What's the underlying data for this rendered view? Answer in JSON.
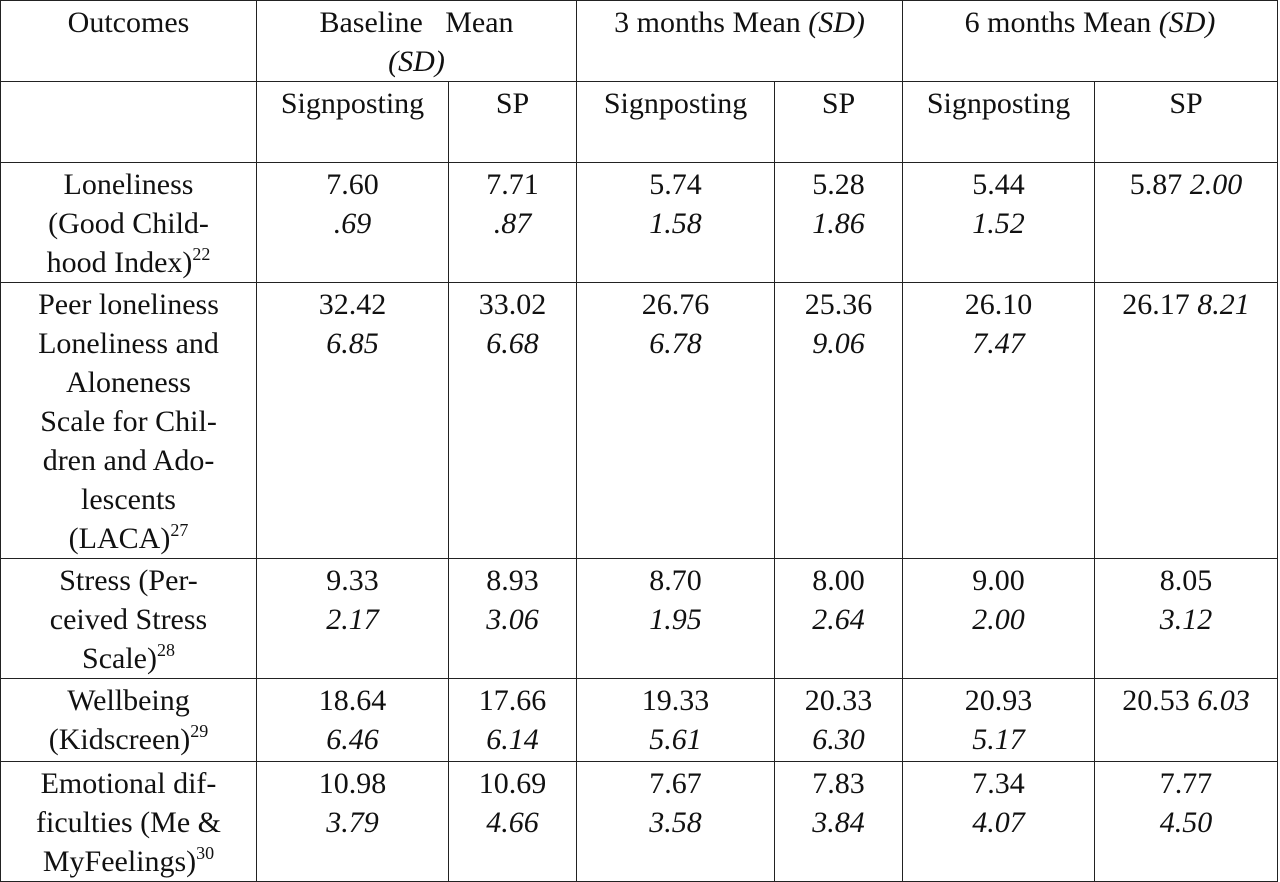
{
  "header": {
    "outcomes": "Outcomes",
    "baseline": "Baseline   Mean",
    "baseline_sd": "(SD)",
    "m3": "3 months Mean ",
    "m3_sd": "(SD)",
    "m6": "6 months Mean ",
    "m6_sd": "(SD)"
  },
  "subheader": {
    "c1": "Signposting",
    "c2": "SP",
    "c3": "Signposting",
    "c4": "SP",
    "c5": "Signposting",
    "c6": "SP"
  },
  "rows": [
    {
      "label_lines": [
        "Loneliness",
        "(Good Child-",
        "hood Index)"
      ],
      "ref": "22",
      "cells": [
        {
          "mean": "7.60",
          "sd": ".69"
        },
        {
          "mean": "7.71",
          "sd": ".87"
        },
        {
          "mean": "5.74",
          "sd": "1.58"
        },
        {
          "mean": "5.28",
          "sd": "1.86"
        },
        {
          "mean": "5.44",
          "sd": "1.52"
        },
        {
          "mean": "5.87",
          "sd": "2.00"
        }
      ]
    },
    {
      "label_lines": [
        "Peer loneliness",
        "Loneliness and",
        "Aloneness",
        "Scale for Chil-",
        "dren and Ado-",
        "lescents",
        "(LACA)"
      ],
      "ref": "27",
      "cells": [
        {
          "mean": "32.42",
          "sd": "6.85"
        },
        {
          "mean": "33.02",
          "sd": "6.68"
        },
        {
          "mean": "26.76",
          "sd": "6.78"
        },
        {
          "mean": "25.36",
          "sd": "9.06"
        },
        {
          "mean": "26.10",
          "sd": "7.47"
        },
        {
          "mean": "26.17",
          "sd": "8.21"
        }
      ]
    },
    {
      "label_lines": [
        "Stress (Per-",
        "ceived Stress",
        "Scale)"
      ],
      "ref": "28",
      "cells": [
        {
          "mean": "9.33",
          "sd": "2.17"
        },
        {
          "mean": "8.93",
          "sd": "3.06"
        },
        {
          "mean": "8.70",
          "sd": "1.95"
        },
        {
          "mean": "8.00",
          "sd": "2.64"
        },
        {
          "mean": "9.00",
          "sd": "2.00"
        },
        {
          "mean": "8.05",
          "sd": "3.12"
        }
      ]
    },
    {
      "label_lines": [
        "Wellbeing",
        "(Kidscreen)"
      ],
      "ref": "29",
      "cells": [
        {
          "mean": "18.64",
          "sd": "6.46"
        },
        {
          "mean": "17.66",
          "sd": "6.14"
        },
        {
          "mean": "19.33",
          "sd": "5.61"
        },
        {
          "mean": "20.33",
          "sd": "6.30"
        },
        {
          "mean": "20.93",
          "sd": "5.17"
        },
        {
          "mean": "20.53",
          "sd": "6.03"
        }
      ]
    },
    {
      "label_lines": [
        "Emotional dif-",
        "ficulties (Me &",
        "MyFeelings)"
      ],
      "ref": "30",
      "cells": [
        {
          "mean": "10.98",
          "sd": "3.79"
        },
        {
          "mean": "10.69",
          "sd": "4.66"
        },
        {
          "mean": "7.67",
          "sd": "3.58"
        },
        {
          "mean": "7.83",
          "sd": "3.84"
        },
        {
          "mean": "7.34",
          "sd": "4.07"
        },
        {
          "mean": "7.77",
          "sd": "4.50"
        }
      ]
    }
  ]
}
